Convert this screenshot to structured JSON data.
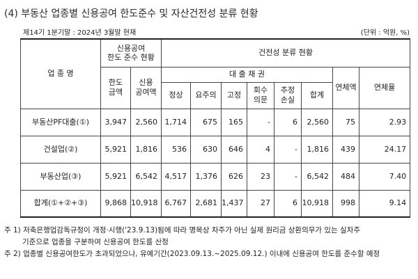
{
  "title": "(4) 부동산 업종별 신용공여 한도준수 및 자산건전성 분류 현황",
  "subtitle_left": "제14기 1분기말 : 2024년 3월말 현재",
  "subtitle_right": "(단위 : 억원, %)",
  "header": {
    "category": "업 종 명",
    "limit_group": "신용공여\n한도 준수 현황",
    "limit_amount": "한도\n금액",
    "credit_amount": "신용\n공여액",
    "soundness_group": "건전성 분류 현황",
    "loans_group": "대 출 채 권",
    "normal": "정상",
    "watch": "요주의",
    "fixed": "고정",
    "doubtful": "회수\n의문",
    "est_loss": "추정\n손실",
    "sum": "합계",
    "overdue_amount": "연체액",
    "overdue_rate": "연체율"
  },
  "rows": [
    {
      "name": "부동산PF대출(①)",
      "limit": "3,947",
      "credit": "2,560",
      "normal": "1,714",
      "watch": "675",
      "fixed": "165",
      "doubtful": "-",
      "loss": "6",
      "sum": "2,560",
      "overdue": "75",
      "rate": "2.93"
    },
    {
      "name": "건설업(②)",
      "limit": "5,921",
      "credit": "1,816",
      "normal": "536",
      "watch": "630",
      "fixed": "646",
      "doubtful": "4",
      "loss": "-",
      "sum": "1,816",
      "overdue": "439",
      "rate": "24.17"
    },
    {
      "name": "부동산업(③)",
      "limit": "5,921",
      "credit": "6,542",
      "normal": "4,517",
      "watch": "1,376",
      "fixed": "626",
      "doubtful": "23",
      "loss": "-",
      "sum": "6,542",
      "overdue": "484",
      "rate": "7.40"
    },
    {
      "name": "합계(①+②+③)",
      "limit": "9,868",
      "credit": "10,918",
      "normal": "6,767",
      "watch": "2,681",
      "fixed": "1,437",
      "doubtful": "27",
      "loss": "6",
      "sum": "10,918",
      "overdue": "998",
      "rate": "9.14"
    }
  ],
  "notes": [
    "주 1) 저축은행업감독규정이 개정·시행('23.9.13)됨에 따라 명목상 차주가 아닌 실제 원리금 상환의무가 있는 실차주",
    "기준으로 업종을 구분하여 신용공여 한도를 산정",
    "주 2) 업종별 신용공여한도가 초과되었으나, 유예기간(2023.09.13.~2025.09.12.) 이내에 신용공여 한도를 준수할 예정"
  ]
}
